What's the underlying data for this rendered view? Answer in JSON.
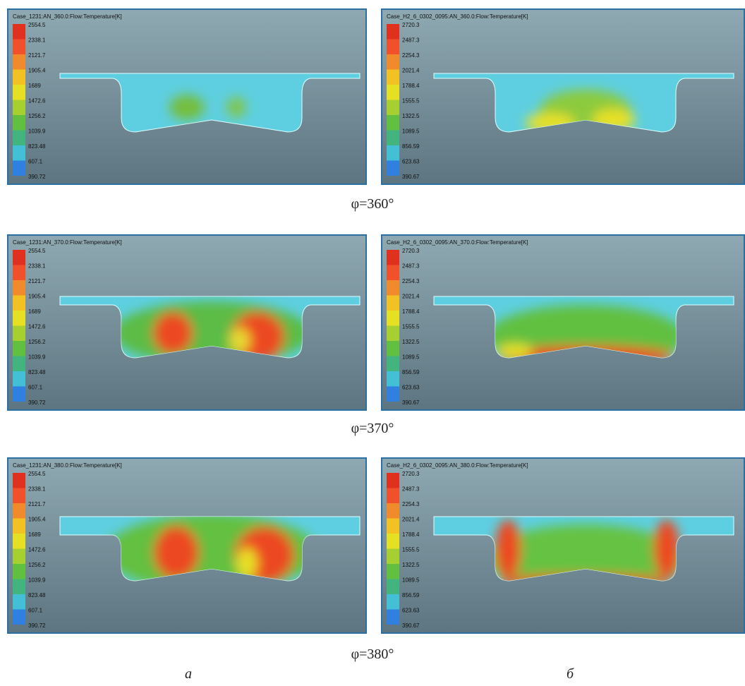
{
  "rows": [
    {
      "caption": "φ=360°",
      "panels": [
        {
          "title": "Case_1231:AN_360.0:Flow:Temperature[K]",
          "legend": [
            "2554.5",
            "2338.1",
            "2121.7",
            "1905.4",
            "1689",
            "1472.6",
            "1256.2",
            "1039.9",
            "823.48",
            "607.1",
            "390.72"
          ]
        },
        {
          "title": "Case_H2_6_0302_0095:AN_360.0:Flow:Temperature[K]",
          "legend": [
            "2720.3",
            "2487.3",
            "2254.3",
            "2021.4",
            "1788.4",
            "1555.5",
            "1322.5",
            "1089.5",
            "856.59",
            "623.63",
            "390.67"
          ]
        }
      ]
    },
    {
      "caption": "φ=370°",
      "panels": [
        {
          "title": "Case_1231:AN_370.0:Flow:Temperature[K]",
          "legend": [
            "2554.5",
            "2338.1",
            "2121.7",
            "1905.4",
            "1689",
            "1472.6",
            "1256.2",
            "1039.9",
            "823.48",
            "607.1",
            "390.72"
          ]
        },
        {
          "title": "Case_H2_6_0302_0095:AN_370.0:Flow:Temperature[K]",
          "legend": [
            "2720.3",
            "2487.3",
            "2254.3",
            "2021.4",
            "1788.4",
            "1555.5",
            "1322.5",
            "1089.5",
            "856.59",
            "623.63",
            "390.67"
          ]
        }
      ]
    },
    {
      "caption": "φ=380°",
      "panels": [
        {
          "title": "Case_1231:AN_380.0:Flow:Temperature[K]",
          "legend": [
            "2554.5",
            "2338.1",
            "2121.7",
            "1905.4",
            "1689",
            "1472.6",
            "1256.2",
            "1039.9",
            "823.48",
            "607.1",
            "390.72"
          ]
        },
        {
          "title": "Case_H2_6_0302_0095:AN_380.0:Flow:Temperature[K]",
          "legend": [
            "2720.3",
            "2487.3",
            "2254.3",
            "2021.4",
            "1788.4",
            "1555.5",
            "1322.5",
            "1089.5",
            "856.59",
            "623.63",
            "390.67"
          ]
        }
      ]
    }
  ],
  "column_labels": [
    "а",
    "б"
  ]
}
